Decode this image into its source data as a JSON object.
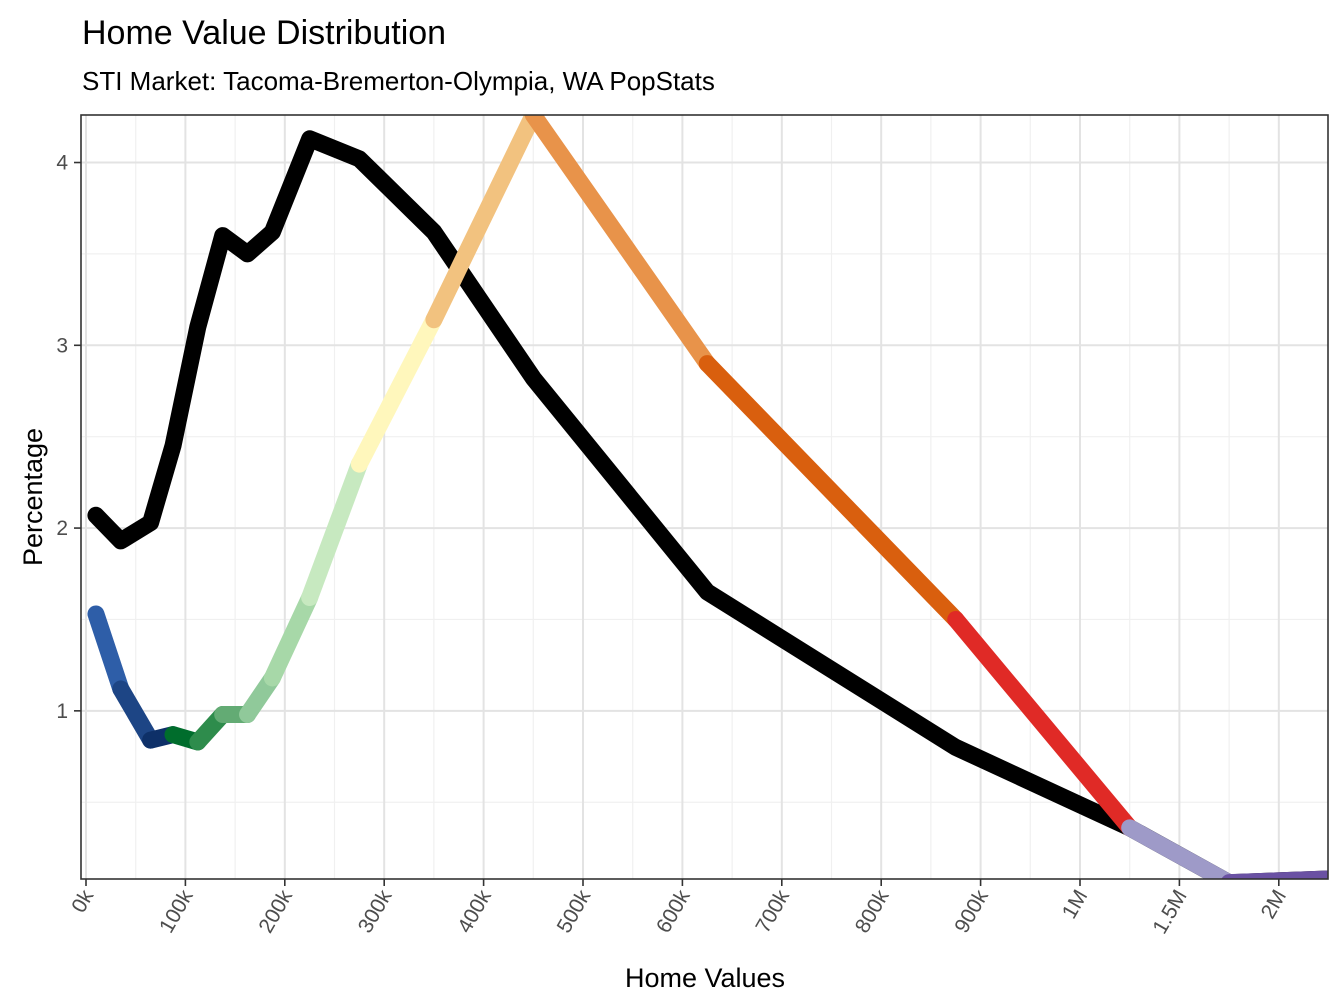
{
  "chart_data": {
    "type": "line",
    "title": "Home Value Distribution",
    "subtitle": "STI Market: Tacoma-Bremerton-Olympia, WA PopStats",
    "xlabel": "Home Values",
    "ylabel": "Percentage",
    "x_ticks": [
      "0k",
      "100k",
      "200k",
      "300k",
      "400k",
      "500k",
      "600k",
      "700k",
      "800k",
      "900k",
      "1M",
      "1.5M",
      "2M"
    ],
    "y_ticks": [
      "1",
      "2",
      "3",
      "4"
    ],
    "ylim": [
      0.08,
      4.26
    ],
    "grid": true,
    "series": [
      {
        "color": "#000000",
        "points": [
          {
            "x": "10k",
            "y": 2.07
          },
          {
            "x": "35k",
            "y": 1.93
          },
          {
            "x": "65k",
            "y": 2.03
          },
          {
            "x": "87.5k",
            "y": 2.45
          },
          {
            "x": "112.5k",
            "y": 3.1
          },
          {
            "x": "137.5k",
            "y": 3.6
          },
          {
            "x": "162.5k",
            "y": 3.5
          },
          {
            "x": "187.5k",
            "y": 3.62
          },
          {
            "x": "225k",
            "y": 4.13
          },
          {
            "x": "275k",
            "y": 4.02
          },
          {
            "x": "350k",
            "y": 3.62
          },
          {
            "x": "450k",
            "y": 2.82
          },
          {
            "x": "625k",
            "y": 1.65
          },
          {
            "x": "875k",
            "y": 0.8
          },
          {
            "x": "1.25M",
            "y": 0.36
          },
          {
            "x": "1.75M",
            "y": 0.06
          },
          {
            "x": "2.25M",
            "y": 0.08
          }
        ]
      },
      {
        "points": [
          {
            "x": "10k",
            "y": 1.53,
            "color": "#5585c9"
          },
          {
            "x": "35k",
            "y": 1.12,
            "color": "#2e5ea8"
          },
          {
            "x": "65k",
            "y": 0.84,
            "color": "#1d4585"
          },
          {
            "x": "87.5k",
            "y": 0.87,
            "color": "#0e3068"
          },
          {
            "x": "112.5k",
            "y": 0.83,
            "color": "#006d2c"
          },
          {
            "x": "137.5k",
            "y": 0.98,
            "color": "#2e8c4c"
          },
          {
            "x": "162.5k",
            "y": 0.98,
            "color": "#63ab74"
          },
          {
            "x": "187.5k",
            "y": 1.18,
            "color": "#90c99a"
          },
          {
            "x": "225k",
            "y": 1.62,
            "color": "#a7d8a8"
          },
          {
            "x": "275k",
            "y": 2.35,
            "color": "#c7e9c0"
          },
          {
            "x": "350k",
            "y": 3.14,
            "color": "#fff7bc"
          },
          {
            "x": "450k",
            "y": 4.26,
            "color": "#f2c27f"
          },
          {
            "x": "625k",
            "y": 2.9,
            "color": "#e8934a"
          },
          {
            "x": "875k",
            "y": 1.5,
            "color": "#d95f0e"
          },
          {
            "x": "1.25M",
            "y": 0.36,
            "color": "#e02a26"
          },
          {
            "x": "1.75M",
            "y": 0.06,
            "color": "#9e9ac8"
          },
          {
            "x": "2.25M",
            "y": 0.08,
            "color": "#6a51a3"
          }
        ]
      }
    ]
  }
}
